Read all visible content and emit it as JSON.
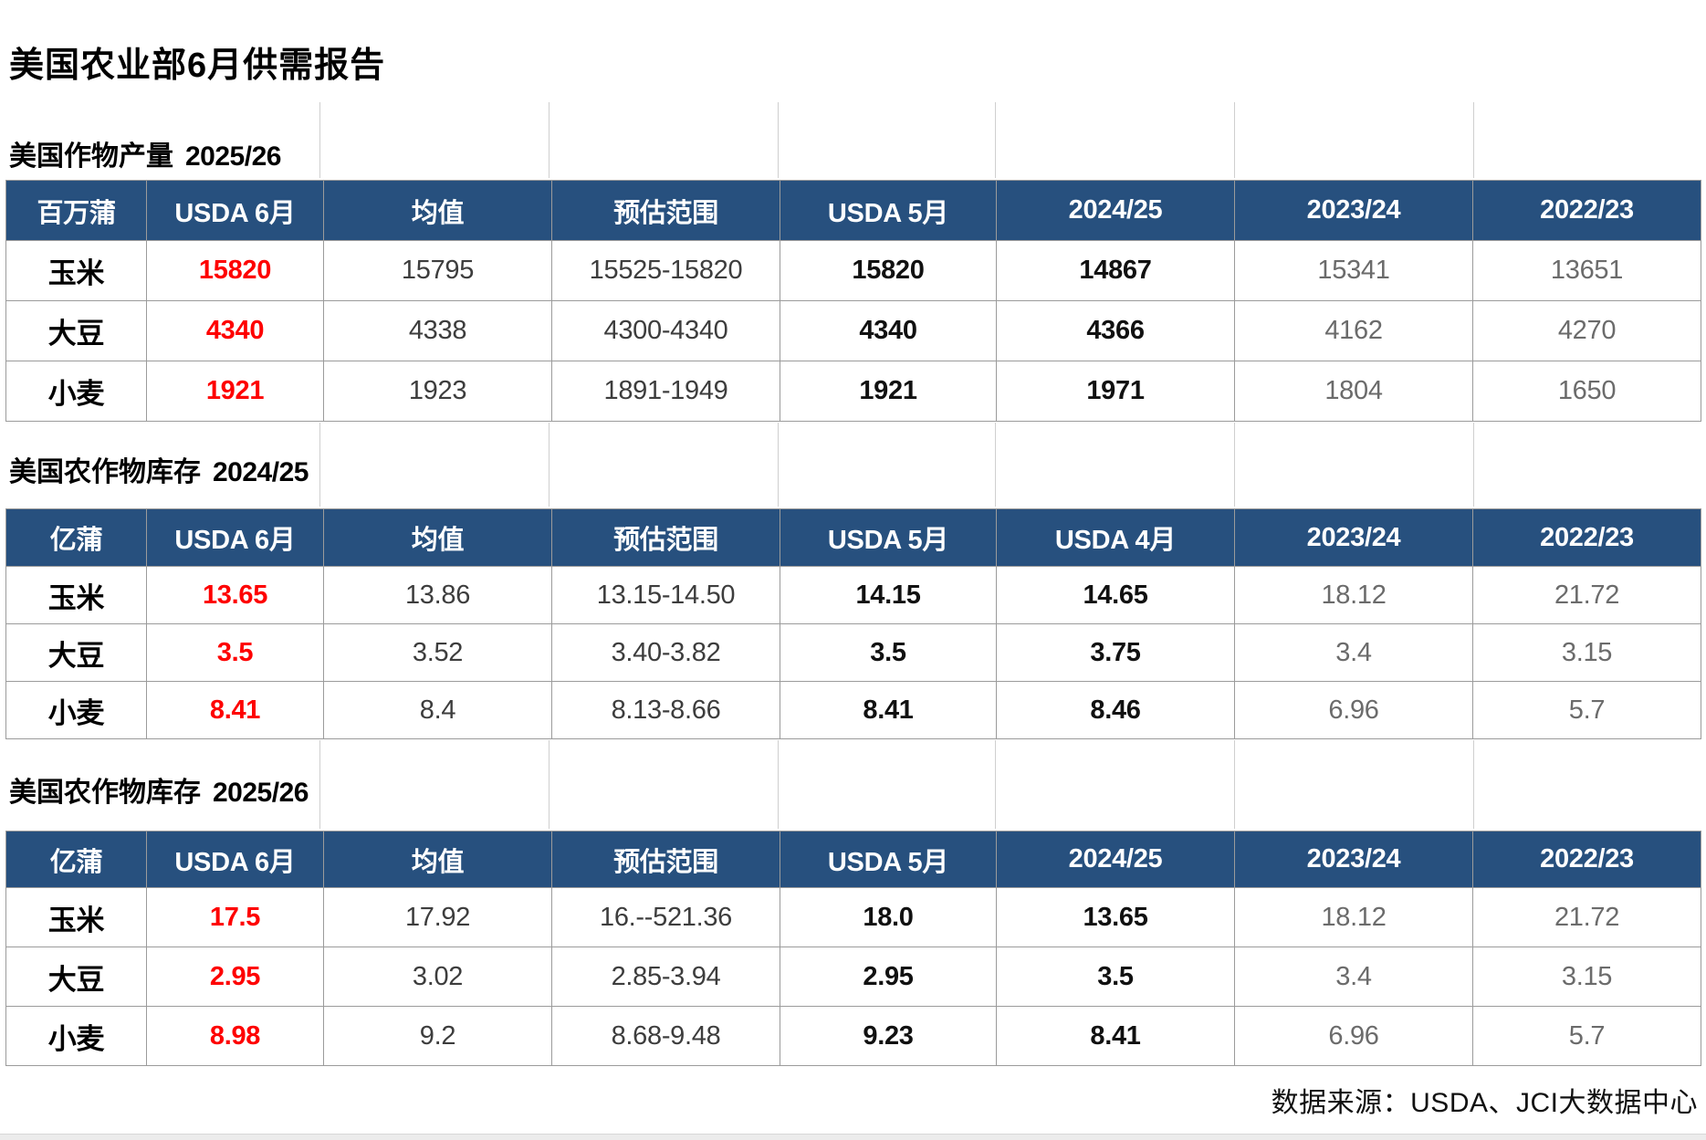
{
  "page": {
    "title": "美国农业部6月供需报告",
    "source_note": "数据来源：USDA、JCI大数据中心"
  },
  "colors": {
    "header_bg": "#27507e",
    "header_text": "#ffffff",
    "highlight_red": "#fe0000",
    "bold_value": "#111111",
    "regular_value": "#3d3d3d",
    "muted_value": "#6b6b6b",
    "border": "#9b9b9b"
  },
  "tables": [
    {
      "subtitle": "美国作物产量",
      "season": "2025/26",
      "unit": "百万蒲",
      "columns": [
        "百万蒲",
        "USDA 6月",
        "均值",
        "预估范围",
        "USDA 5月",
        "2024/25",
        "2023/24",
        "2022/23"
      ],
      "rows": [
        {
          "crop": "玉米",
          "cells": [
            "15820",
            "15795",
            "15525-15820",
            "15820",
            "14867",
            "15341",
            "13651"
          ]
        },
        {
          "crop": "大豆",
          "cells": [
            "4340",
            "4338",
            "4300-4340",
            "4340",
            "4366",
            "4162",
            "4270"
          ]
        },
        {
          "crop": "小麦",
          "cells": [
            "1921",
            "1923",
            "1891-1949",
            "1921",
            "1971",
            "1804",
            "1650"
          ]
        }
      ]
    },
    {
      "subtitle": "美国农作物库存",
      "season": "2024/25",
      "unit": "亿蒲",
      "columns": [
        "亿蒲",
        "USDA 6月",
        "均值",
        "预估范围",
        "USDA 5月",
        "USDA 4月",
        "2023/24",
        "2022/23"
      ],
      "rows": [
        {
          "crop": "玉米",
          "cells": [
            "13.65",
            "13.86",
            "13.15-14.50",
            "14.15",
            "14.65",
            "18.12",
            "21.72"
          ]
        },
        {
          "crop": "大豆",
          "cells": [
            "3.5",
            "3.52",
            "3.40-3.82",
            "3.5",
            "3.75",
            "3.4",
            "3.15"
          ]
        },
        {
          "crop": "小麦",
          "cells": [
            "8.41",
            "8.4",
            "8.13-8.66",
            "8.41",
            "8.46",
            "6.96",
            "5.7"
          ]
        }
      ]
    },
    {
      "subtitle": "美国农作物库存",
      "season": "2025/26",
      "unit": "亿蒲",
      "columns": [
        "亿蒲",
        "USDA 6月",
        "均值",
        "预估范围",
        "USDA 5月",
        "2024/25",
        "2023/24",
        "2022/23"
      ],
      "rows": [
        {
          "crop": "玉米",
          "cells": [
            "17.5",
            "17.92",
            "16.--521.36",
            "18.0",
            "13.65",
            "18.12",
            "21.72"
          ]
        },
        {
          "crop": "大豆",
          "cells": [
            "2.95",
            "3.02",
            "2.85-3.94",
            "2.95",
            "3.5",
            "3.4",
            "3.15"
          ]
        },
        {
          "crop": "小麦",
          "cells": [
            "8.98",
            "9.2",
            "8.68-9.48",
            "9.23",
            "8.41",
            "6.96",
            "5.7"
          ]
        }
      ]
    }
  ]
}
